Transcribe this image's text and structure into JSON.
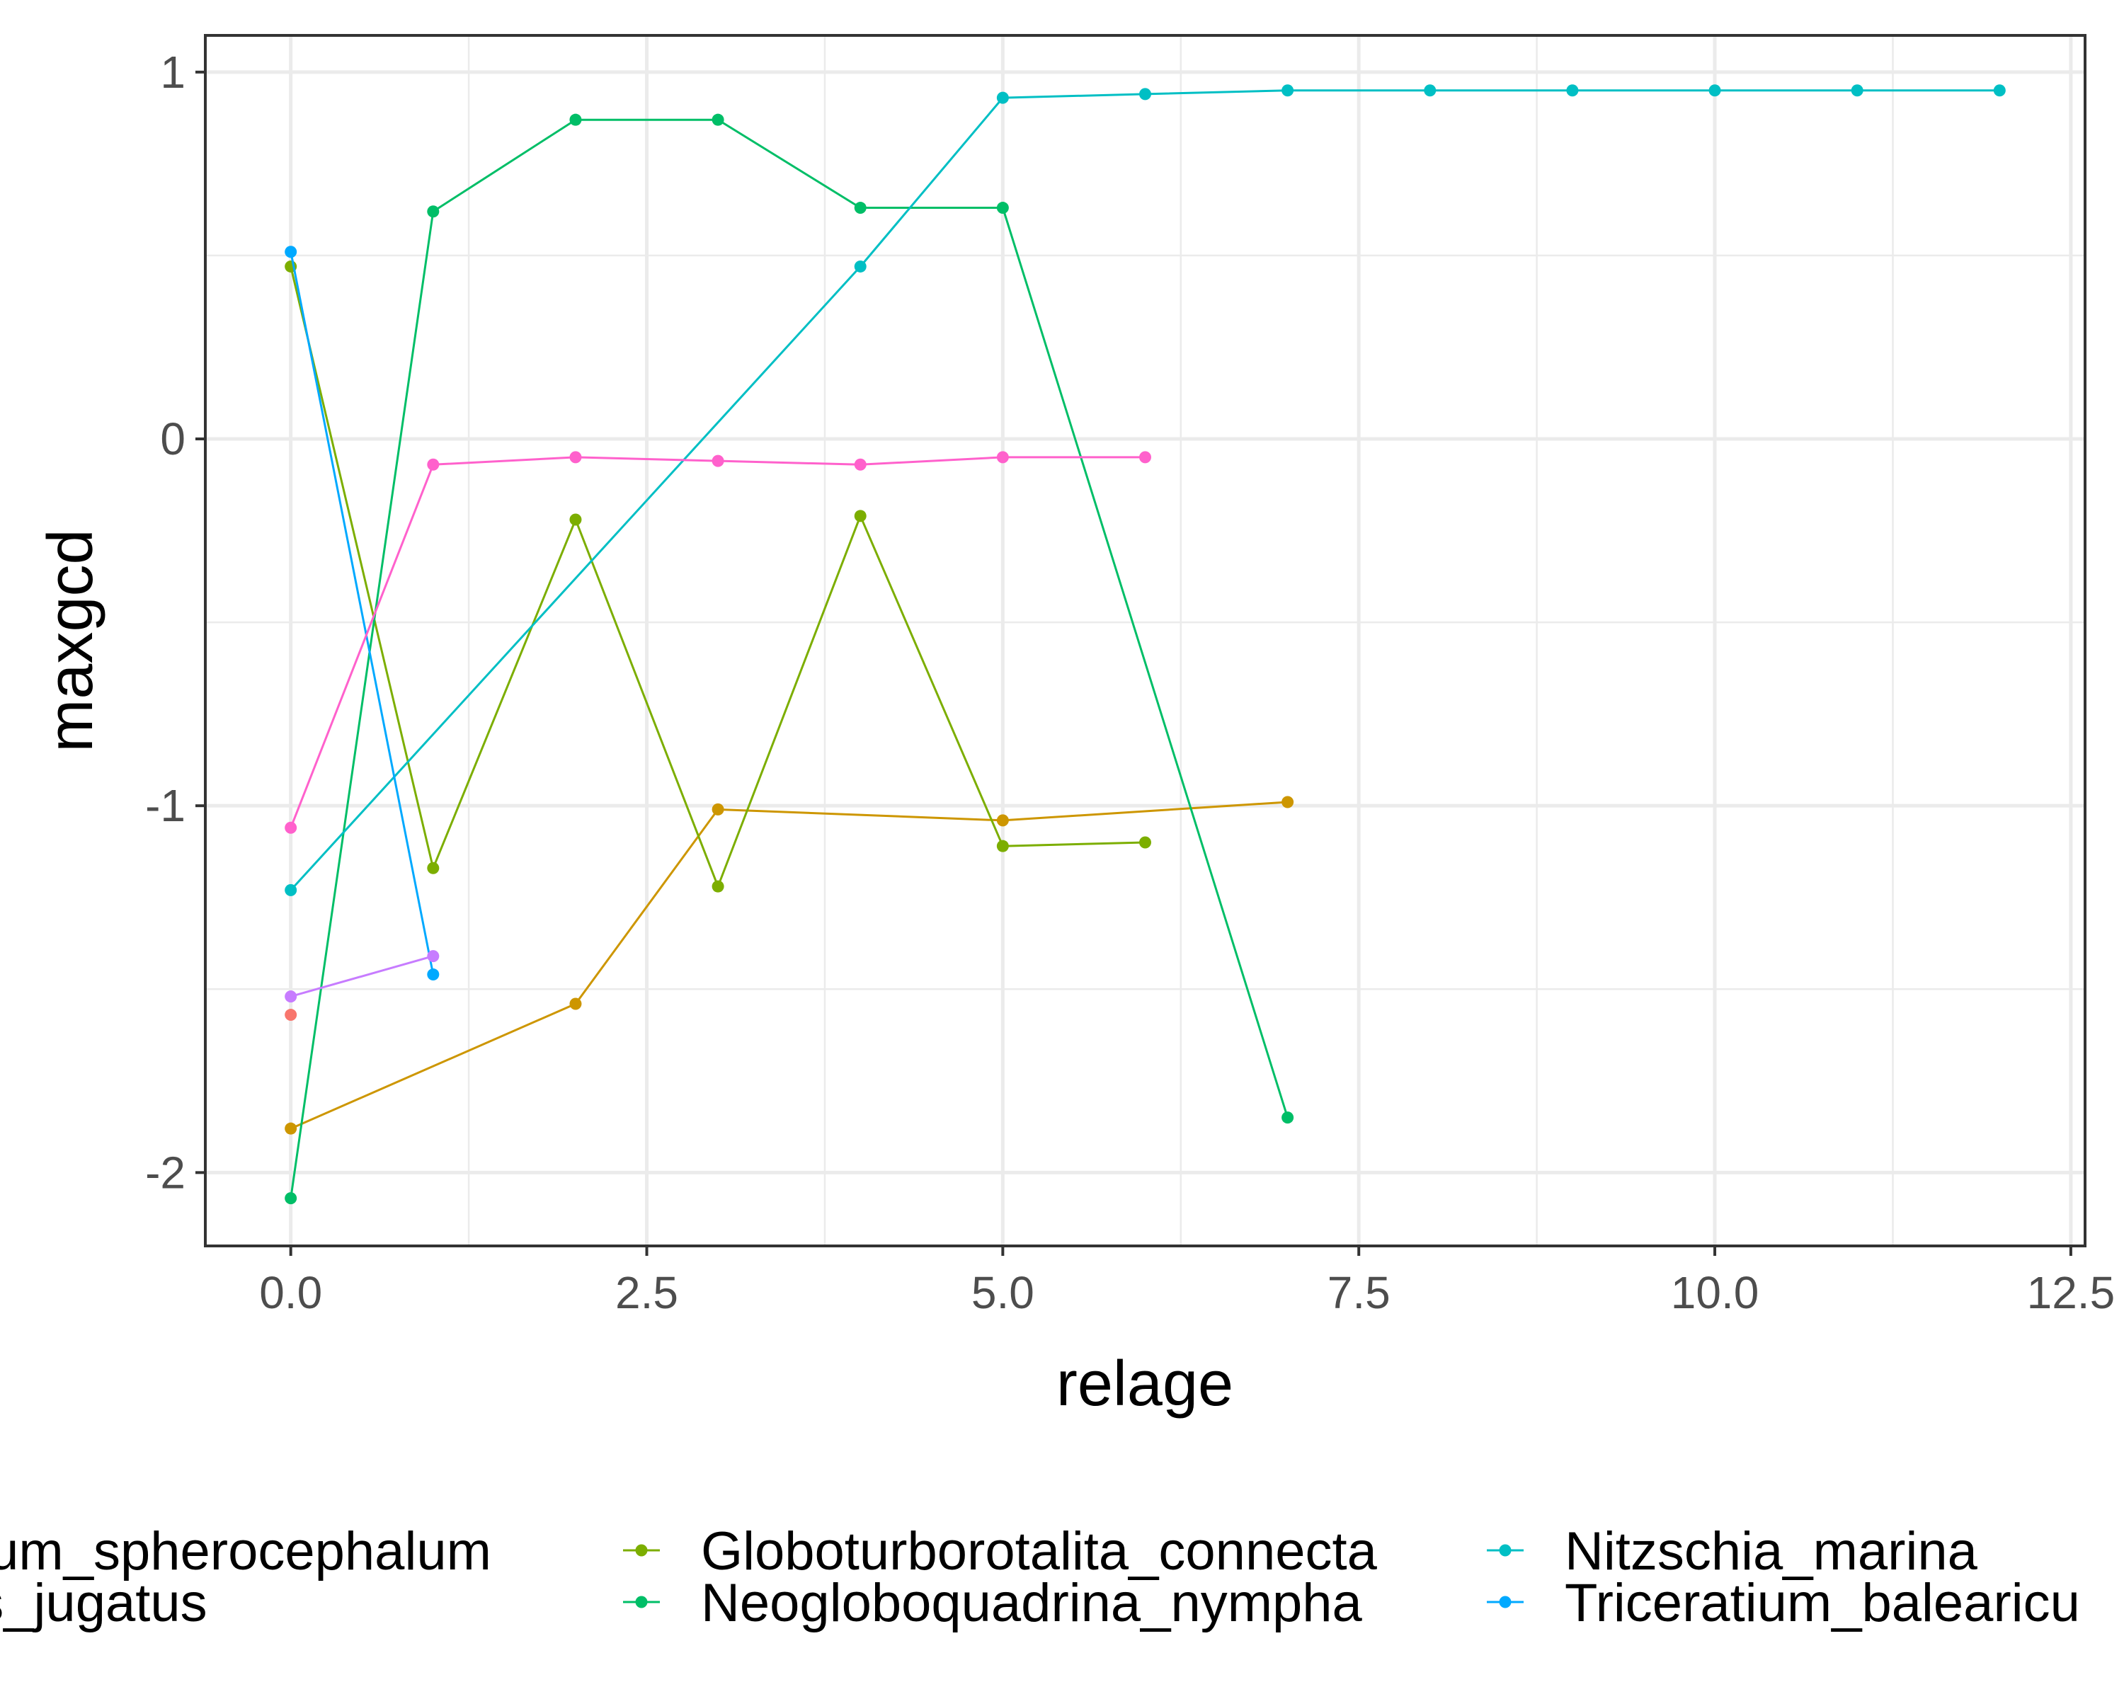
{
  "chart_data": {
    "type": "line",
    "xlabel": "relage",
    "ylabel": "maxgcd",
    "xlim": [
      -0.6,
      12.6
    ],
    "ylim": [
      -2.2,
      1.1
    ],
    "x_ticks": [
      0,
      2.5,
      5,
      7.5,
      10,
      12.5
    ],
    "x_tick_labels": [
      "0.0",
      "2.5",
      "5.0",
      "7.5",
      "10.0",
      "12.5"
    ],
    "y_ticks": [
      -2,
      -1,
      0,
      1
    ],
    "y_tick_labels": [
      "-2",
      "-1",
      "0",
      "1"
    ],
    "grid": true,
    "legend_position": "bottom",
    "series": [
      {
        "name": "…nium_spherocephalum",
        "color": "#F8766D",
        "x": [
          0
        ],
        "y": [
          -1.57
        ]
      },
      {
        "name": "",
        "color": "#CD9600",
        "x": [
          0,
          2,
          3,
          5,
          7
        ],
        "y": [
          -1.88,
          -1.54,
          -1.01,
          -1.04,
          -0.99
        ]
      },
      {
        "name": "Globoturborotalita_connecta",
        "color": "#7CAE00",
        "x": [
          0,
          1,
          2,
          3,
          4,
          5,
          6
        ],
        "y": [
          0.47,
          -1.17,
          -0.22,
          -1.22,
          -0.21,
          -1.11,
          -1.1
        ]
      },
      {
        "name": "Neogloboquadrina_nympha",
        "color": "#00BE67",
        "x": [
          0,
          1,
          2,
          3,
          4,
          5,
          7
        ],
        "y": [
          -2.07,
          0.62,
          0.87,
          0.87,
          0.63,
          0.63,
          -1.85
        ]
      },
      {
        "name": "Nitzschia_marina",
        "color": "#00BFC4",
        "x": [
          0,
          4,
          5,
          6,
          7,
          8,
          9,
          10,
          11,
          12
        ],
        "y": [
          -1.23,
          0.47,
          0.93,
          0.94,
          0.95,
          0.95,
          0.95,
          0.95,
          0.95,
          0.95
        ]
      },
      {
        "name": "Triceratium_balearicu…",
        "color": "#00A9FF",
        "x": [
          0,
          1
        ],
        "y": [
          0.51,
          -1.46
        ]
      },
      {
        "name": "…us_jugatus",
        "color": "#C77CFF",
        "x": [
          0,
          1
        ],
        "y": [
          -1.52,
          -1.41
        ]
      },
      {
        "name": "",
        "color": "#FF61CC",
        "x": [
          0,
          1,
          2,
          3,
          4,
          5,
          6
        ],
        "y": [
          -1.06,
          -0.07,
          -0.05,
          -0.06,
          -0.07,
          -0.05,
          -0.05
        ]
      }
    ],
    "legend_entries": [
      {
        "label": "nium_spherocephalum",
        "color": "#F8766D"
      },
      {
        "label": "us_jugatus",
        "color": "#C77CFF"
      },
      {
        "label": "Globoturborotalita_connecta",
        "color": "#7CAE00"
      },
      {
        "label": "Neogloboquadrina_nympha",
        "color": "#00BE67"
      },
      {
        "label": "Nitzschia_marina",
        "color": "#00BFC4"
      },
      {
        "label": "Triceratium_balearicu",
        "color": "#00A9FF"
      }
    ]
  }
}
